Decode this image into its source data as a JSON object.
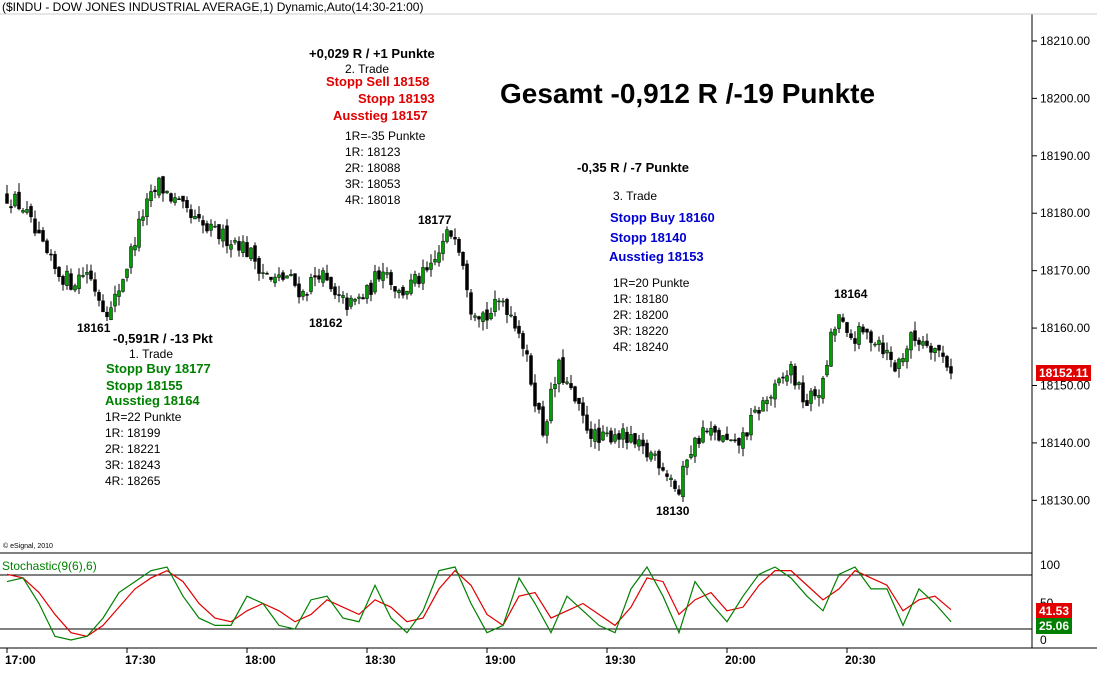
{
  "header": {
    "title": "($INDU - DOW JONES INDUSTRIAL AVERAGE,1) Dynamic,Auto(14:30-21:00)",
    "copyright": "© eSignal, 2010"
  },
  "annotations": {
    "total": "Gesamt -0,912 R /-19 Punkte",
    "trade1": {
      "result": "-0,591R / -13 Pkt",
      "label": "1. Trade",
      "entry": "Stopp Buy 18177",
      "stop": "Stopp 18155",
      "exit": "Ausstieg 18164",
      "risk": "1R=22 Punkte",
      "targets": [
        "1R: 18199",
        "2R: 18221",
        "3R: 18243",
        "4R: 18265"
      ]
    },
    "trade2": {
      "result": "+0,029 R / +1 Punkte",
      "label": "2. Trade",
      "entry": "Stopp Sell 18158",
      "stop": "Stopp 18193",
      "exit": "Ausstieg 18157",
      "risk": "1R=-35 Punkte",
      "targets": [
        "1R: 18123",
        "2R: 18088",
        "3R: 18053",
        "4R: 18018"
      ]
    },
    "trade3": {
      "result": "-0,35 R / -7 Punkte",
      "label": "3. Trade",
      "entry": "Stopp Buy 18160",
      "stop": "Stopp 18140",
      "exit": "Ausstieg 18153",
      "risk": "1R=20 Punkte",
      "targets": [
        "1R: 18180",
        "2R: 18200",
        "3R: 18220",
        "4R: 18240"
      ]
    },
    "pivots": [
      "18161",
      "18162",
      "18177",
      "18130",
      "18164"
    ]
  },
  "chart_data": {
    "type": "candlestick",
    "price_axis": {
      "ylim": [
        18121,
        18214
      ],
      "ticks": [
        18130,
        18140,
        18150,
        18160,
        18170,
        18180,
        18190,
        18200,
        18210
      ],
      "tick_labels": [
        "18130.00",
        "18140.00",
        "18150.00",
        "18160.00",
        "18170.00",
        "18180.00",
        "18190.00",
        "18200.00",
        "18210.00"
      ],
      "last_price": "18152.11",
      "last_price_value": 18152.11,
      "last_price_color": "#e00000"
    },
    "time_axis": {
      "labels": [
        "17:00",
        "17:30",
        "18:00",
        "18:30",
        "19:00",
        "19:30",
        "20:00",
        "20:30"
      ],
      "bars_per_30min": 30
    },
    "close_path": [
      [
        0,
        18183
      ],
      [
        4,
        18181
      ],
      [
        8,
        18175
      ],
      [
        12,
        18170
      ],
      [
        16,
        18168
      ],
      [
        20,
        18170
      ],
      [
        24,
        18164
      ],
      [
        26,
        18163
      ],
      [
        30,
        18171
      ],
      [
        34,
        18180
      ],
      [
        38,
        18185
      ],
      [
        42,
        18182
      ],
      [
        46,
        18179
      ],
      [
        50,
        18177
      ],
      [
        54,
        18176
      ],
      [
        58,
        18175
      ],
      [
        62,
        18172
      ],
      [
        66,
        18168
      ],
      [
        70,
        18169
      ],
      [
        74,
        18166
      ],
      [
        78,
        18170
      ],
      [
        82,
        18165
      ],
      [
        86,
        18164
      ],
      [
        90,
        18166
      ],
      [
        94,
        18171
      ],
      [
        98,
        18166
      ],
      [
        102,
        18168
      ],
      [
        106,
        18170
      ],
      [
        110,
        18176
      ],
      [
        112,
        18177
      ],
      [
        114,
        18172
      ],
      [
        116,
        18164
      ],
      [
        120,
        18162
      ],
      [
        124,
        18165
      ],
      [
        128,
        18160
      ],
      [
        132,
        18148
      ],
      [
        134,
        18142
      ],
      [
        136,
        18148
      ],
      [
        138,
        18153
      ],
      [
        140,
        18150
      ],
      [
        144,
        18144
      ],
      [
        148,
        18140
      ],
      [
        152,
        18142
      ],
      [
        156,
        18140
      ],
      [
        160,
        18138
      ],
      [
        162,
        18138
      ],
      [
        166,
        18134
      ],
      [
        168,
        18131
      ],
      [
        170,
        18138
      ],
      [
        174,
        18142
      ],
      [
        178,
        18141
      ],
      [
        182,
        18139
      ],
      [
        184,
        18141
      ],
      [
        188,
        18146
      ],
      [
        192,
        18149
      ],
      [
        196,
        18153
      ],
      [
        198,
        18149
      ],
      [
        200,
        18147
      ],
      [
        204,
        18150
      ],
      [
        206,
        18158
      ],
      [
        208,
        18162
      ],
      [
        210,
        18158
      ],
      [
        214,
        18159
      ],
      [
        218,
        18158
      ],
      [
        222,
        18153
      ],
      [
        226,
        18158
      ],
      [
        230,
        18158
      ],
      [
        234,
        18155
      ],
      [
        236,
        18153
      ]
    ],
    "stochastic": {
      "title": "Stochastic(9(6),6)",
      "ylim": [
        0,
        100
      ],
      "levels": [
        20,
        80
      ],
      "tick_labels": [
        "100",
        "50",
        "0"
      ],
      "percent_k_last": "25.06",
      "percent_d_last": "41.53",
      "k_color": "#008000",
      "d_color": "#e00000",
      "k": [
        [
          0,
          80
        ],
        [
          4,
          85
        ],
        [
          8,
          50
        ],
        [
          12,
          5
        ],
        [
          16,
          0
        ],
        [
          20,
          5
        ],
        [
          24,
          30
        ],
        [
          28,
          65
        ],
        [
          32,
          80
        ],
        [
          36,
          95
        ],
        [
          40,
          100
        ],
        [
          44,
          60
        ],
        [
          48,
          30
        ],
        [
          52,
          20
        ],
        [
          56,
          20
        ],
        [
          60,
          60
        ],
        [
          64,
          50
        ],
        [
          68,
          20
        ],
        [
          72,
          15
        ],
        [
          76,
          55
        ],
        [
          80,
          60
        ],
        [
          84,
          30
        ],
        [
          88,
          25
        ],
        [
          92,
          75
        ],
        [
          96,
          30
        ],
        [
          100,
          10
        ],
        [
          104,
          40
        ],
        [
          108,
          95
        ],
        [
          112,
          100
        ],
        [
          116,
          50
        ],
        [
          120,
          10
        ],
        [
          124,
          20
        ],
        [
          128,
          85
        ],
        [
          132,
          50
        ],
        [
          136,
          10
        ],
        [
          140,
          60
        ],
        [
          144,
          40
        ],
        [
          148,
          20
        ],
        [
          152,
          10
        ],
        [
          156,
          70
        ],
        [
          160,
          100
        ],
        [
          164,
          60
        ],
        [
          168,
          10
        ],
        [
          172,
          80
        ],
        [
          176,
          50
        ],
        [
          180,
          25
        ],
        [
          184,
          60
        ],
        [
          188,
          90
        ],
        [
          192,
          100
        ],
        [
          196,
          85
        ],
        [
          200,
          60
        ],
        [
          204,
          40
        ],
        [
          208,
          90
        ],
        [
          212,
          100
        ],
        [
          216,
          70
        ],
        [
          220,
          70
        ],
        [
          224,
          20
        ],
        [
          228,
          70
        ],
        [
          232,
          50
        ],
        [
          236,
          25
        ]
      ],
      "d": [
        [
          0,
          90
        ],
        [
          4,
          85
        ],
        [
          8,
          65
        ],
        [
          12,
          35
        ],
        [
          16,
          10
        ],
        [
          20,
          5
        ],
        [
          24,
          20
        ],
        [
          28,
          45
        ],
        [
          32,
          70
        ],
        [
          36,
          85
        ],
        [
          40,
          95
        ],
        [
          44,
          80
        ],
        [
          48,
          50
        ],
        [
          52,
          30
        ],
        [
          56,
          25
        ],
        [
          60,
          40
        ],
        [
          64,
          50
        ],
        [
          68,
          40
        ],
        [
          72,
          25
        ],
        [
          76,
          35
        ],
        [
          80,
          55
        ],
        [
          84,
          45
        ],
        [
          88,
          35
        ],
        [
          92,
          55
        ],
        [
          96,
          45
        ],
        [
          100,
          25
        ],
        [
          104,
          30
        ],
        [
          108,
          70
        ],
        [
          112,
          95
        ],
        [
          116,
          75
        ],
        [
          120,
          35
        ],
        [
          124,
          20
        ],
        [
          128,
          60
        ],
        [
          132,
          65
        ],
        [
          136,
          30
        ],
        [
          140,
          40
        ],
        [
          144,
          50
        ],
        [
          148,
          35
        ],
        [
          152,
          20
        ],
        [
          156,
          45
        ],
        [
          160,
          85
        ],
        [
          164,
          80
        ],
        [
          168,
          35
        ],
        [
          172,
          55
        ],
        [
          176,
          65
        ],
        [
          180,
          40
        ],
        [
          184,
          45
        ],
        [
          188,
          75
        ],
        [
          192,
          95
        ],
        [
          196,
          95
        ],
        [
          200,
          75
        ],
        [
          204,
          55
        ],
        [
          208,
          70
        ],
        [
          212,
          95
        ],
        [
          216,
          85
        ],
        [
          220,
          75
        ],
        [
          224,
          40
        ],
        [
          228,
          55
        ],
        [
          232,
          60
        ],
        [
          236,
          41.53
        ]
      ]
    }
  }
}
